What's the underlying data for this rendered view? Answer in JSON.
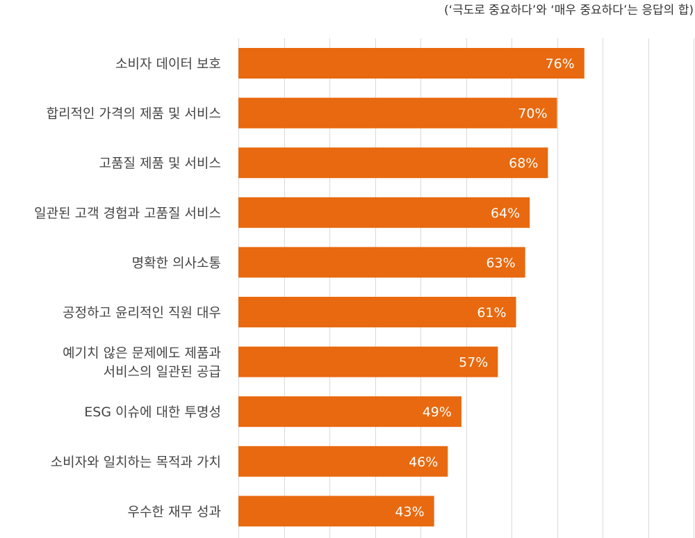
{
  "note": "(‘극도로 중요하다’와 ‘매우 중요하다’는 응답의 합)",
  "colors": {
    "bar": "#E8690F",
    "grid": "#d9d9d9",
    "label": "#444444",
    "value_text": "#ffffff"
  },
  "chart_data": {
    "type": "bar",
    "orientation": "horizontal",
    "annotation": "(‘극도로 중요하다’와 ‘매우 중요하다’는 응답의 합)",
    "categories": [
      "소비자 데이터 보호",
      "합리적인 가격의 제품 및 서비스",
      "고품질 제품 및 서비스",
      "일관된 고객 경험과 고품질 서비스",
      "명확한 의사소통",
      "공정하고 윤리적인 직원 대우",
      "예기치 않은 문제에도 제품과\n서비스의 일관된 공급",
      "ESG 이슈에 대한 투명성",
      "소비자와 일치하는 목적과 가치",
      "우수한 재무 성과"
    ],
    "values": [
      76,
      70,
      68,
      64,
      63,
      61,
      57,
      49,
      46,
      43
    ],
    "value_labels": [
      "76%",
      "70%",
      "68%",
      "64%",
      "63%",
      "61%",
      "57%",
      "49%",
      "46%",
      "43%"
    ],
    "xlim": [
      0,
      100
    ],
    "x_grid_step": 10,
    "grid": true,
    "legend": "none"
  }
}
